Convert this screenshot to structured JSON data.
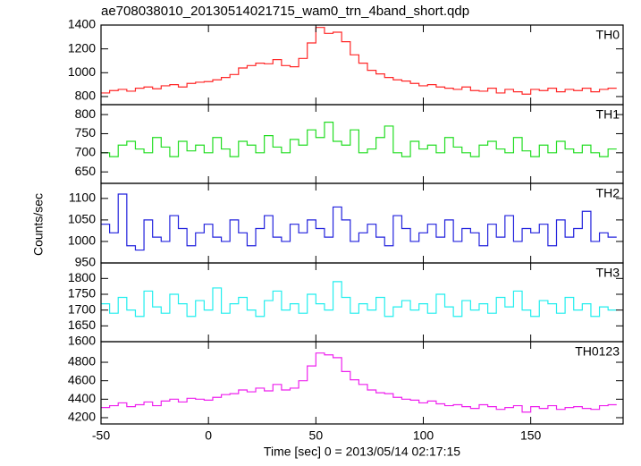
{
  "title": "ae708038010_20130514021715_wam0_trn_4band_short.qdp",
  "xlabel": "Time [sec] 0 = 2013/05/14 02:17:15",
  "ylabel": "Counts/sec",
  "chart_data": [
    {
      "type": "line",
      "x": [
        -48,
        -44,
        -40,
        -36,
        -32,
        -28,
        -24,
        -20,
        -16,
        -12,
        -8,
        -4,
        0,
        4,
        8,
        12,
        16,
        20,
        24,
        28,
        32,
        36,
        40,
        44,
        48,
        52,
        56,
        60,
        64,
        68,
        72,
        76,
        80,
        84,
        88,
        92,
        96,
        100,
        104,
        108,
        112,
        116,
        120,
        124,
        128,
        132,
        136,
        140,
        144,
        148,
        152,
        156,
        160,
        164,
        168,
        172,
        176,
        180,
        184,
        188
      ],
      "series": [
        {
          "name": "TH0",
          "color": "#ff2828",
          "values": [
            830,
            850,
            860,
            845,
            870,
            880,
            865,
            890,
            900,
            880,
            910,
            920,
            925,
            940,
            960,
            985,
            1040,
            1060,
            1080,
            1075,
            1110,
            1060,
            1050,
            1120,
            1250,
            1380,
            1330,
            1340,
            1260,
            1150,
            1080,
            1020,
            990,
            960,
            940,
            930,
            910,
            890,
            900,
            880,
            870,
            860,
            880,
            850,
            845,
            870,
            830,
            860,
            840,
            820,
            860,
            850,
            870,
            840,
            860,
            850,
            870,
            840,
            860,
            870
          ]
        }
      ],
      "xlim": [
        -50,
        193
      ],
      "ylim": [
        732,
        1400
      ],
      "yticks": [
        800,
        1000,
        1200,
        1400
      ]
    },
    {
      "type": "line",
      "x": [
        -48,
        -44,
        -40,
        -36,
        -32,
        -28,
        -24,
        -20,
        -16,
        -12,
        -8,
        -4,
        0,
        4,
        8,
        12,
        16,
        20,
        24,
        28,
        32,
        36,
        40,
        44,
        48,
        52,
        56,
        60,
        64,
        68,
        72,
        76,
        80,
        84,
        88,
        92,
        96,
        100,
        104,
        108,
        112,
        116,
        120,
        124,
        128,
        132,
        136,
        140,
        144,
        148,
        152,
        156,
        160,
        164,
        168,
        172,
        176,
        180,
        184,
        188
      ],
      "series": [
        {
          "name": "TH1",
          "color": "#22dd22",
          "values": [
            700,
            690,
            720,
            730,
            710,
            700,
            740,
            715,
            690,
            730,
            705,
            720,
            700,
            740,
            710,
            690,
            730,
            720,
            700,
            745,
            715,
            700,
            735,
            720,
            760,
            740,
            780,
            730,
            720,
            760,
            700,
            710,
            740,
            770,
            700,
            690,
            730,
            710,
            720,
            700,
            740,
            715,
            700,
            690,
            720,
            730,
            710,
            700,
            740,
            705,
            690,
            720,
            700,
            730,
            710,
            700,
            720,
            700,
            690,
            710
          ]
        }
      ],
      "xlim": [
        -50,
        193
      ],
      "ylim": [
        620,
        826
      ],
      "yticks": [
        650,
        700,
        750,
        800
      ]
    },
    {
      "type": "line",
      "x": [
        -48,
        -44,
        -40,
        -36,
        -32,
        -28,
        -24,
        -20,
        -16,
        -12,
        -8,
        -4,
        0,
        4,
        8,
        12,
        16,
        20,
        24,
        28,
        32,
        36,
        40,
        44,
        48,
        52,
        56,
        60,
        64,
        68,
        72,
        76,
        80,
        84,
        88,
        92,
        96,
        100,
        104,
        108,
        112,
        116,
        120,
        124,
        128,
        132,
        136,
        140,
        144,
        148,
        152,
        156,
        160,
        164,
        168,
        172,
        176,
        180,
        184,
        188
      ],
      "series": [
        {
          "name": "TH2",
          "color": "#2222dd",
          "values": [
            1040,
            1020,
            1110,
            990,
            980,
            1050,
            1010,
            1000,
            1060,
            1030,
            990,
            1020,
            1040,
            1010,
            1000,
            1050,
            1020,
            990,
            1030,
            1060,
            1010,
            1000,
            1040,
            1020,
            1050,
            1030,
            1010,
            1080,
            1050,
            1000,
            1020,
            1040,
            1010,
            990,
            1060,
            1030,
            1000,
            1020,
            1040,
            1010,
            1050,
            1000,
            1030,
            1020,
            990,
            1040,
            1010,
            1060,
            1000,
            1030,
            1020,
            1040,
            990,
            1050,
            1010,
            1030,
            1070,
            1000,
            1020,
            1010
          ]
        }
      ],
      "xlim": [
        -50,
        193
      ],
      "ylim": [
        950,
        1135
      ],
      "yticks": [
        950,
        1000,
        1050,
        1100
      ]
    },
    {
      "type": "line",
      "x": [
        -48,
        -44,
        -40,
        -36,
        -32,
        -28,
        -24,
        -20,
        -16,
        -12,
        -8,
        -4,
        0,
        4,
        8,
        12,
        16,
        20,
        24,
        28,
        32,
        36,
        40,
        44,
        48,
        52,
        56,
        60,
        64,
        68,
        72,
        76,
        80,
        84,
        88,
        92,
        96,
        100,
        104,
        108,
        112,
        116,
        120,
        124,
        128,
        132,
        136,
        140,
        144,
        148,
        152,
        156,
        160,
        164,
        168,
        172,
        176,
        180,
        184,
        188
      ],
      "series": [
        {
          "name": "TH3",
          "color": "#22eeee",
          "values": [
            1720,
            1690,
            1740,
            1700,
            1680,
            1760,
            1710,
            1690,
            1750,
            1720,
            1680,
            1730,
            1700,
            1770,
            1690,
            1720,
            1740,
            1700,
            1680,
            1730,
            1760,
            1700,
            1720,
            1690,
            1750,
            1720,
            1700,
            1790,
            1740,
            1690,
            1720,
            1700,
            1740,
            1680,
            1710,
            1730,
            1700,
            1720,
            1690,
            1750,
            1710,
            1680,
            1730,
            1700,
            1720,
            1690,
            1740,
            1710,
            1760,
            1700,
            1680,
            1730,
            1720,
            1690,
            1740,
            1700,
            1720,
            1680,
            1710,
            1700
          ]
        }
      ],
      "xlim": [
        -50,
        193
      ],
      "ylim": [
        1600,
        1849
      ],
      "yticks": [
        1600,
        1650,
        1700,
        1750,
        1800
      ]
    },
    {
      "type": "line",
      "x": [
        -48,
        -44,
        -40,
        -36,
        -32,
        -28,
        -24,
        -20,
        -16,
        -12,
        -8,
        -4,
        0,
        4,
        8,
        12,
        16,
        20,
        24,
        28,
        32,
        36,
        40,
        44,
        48,
        52,
        56,
        60,
        64,
        68,
        72,
        76,
        80,
        84,
        88,
        92,
        96,
        100,
        104,
        108,
        112,
        116,
        120,
        124,
        128,
        132,
        136,
        140,
        144,
        148,
        152,
        156,
        160,
        164,
        168,
        172,
        176,
        180,
        184,
        188
      ],
      "series": [
        {
          "name": "TH0123",
          "color": "#ee22ee",
          "values": [
            4310,
            4330,
            4360,
            4320,
            4340,
            4370,
            4330,
            4380,
            4400,
            4370,
            4410,
            4400,
            4390,
            4420,
            4450,
            4460,
            4500,
            4480,
            4520,
            4490,
            4560,
            4500,
            4520,
            4600,
            4760,
            4900,
            4880,
            4850,
            4700,
            4610,
            4560,
            4500,
            4470,
            4460,
            4420,
            4400,
            4390,
            4360,
            4380,
            4350,
            4330,
            4340,
            4320,
            4300,
            4340,
            4320,
            4290,
            4310,
            4330,
            4260,
            4320,
            4300,
            4330,
            4290,
            4310,
            4320,
            4300,
            4290,
            4330,
            4340
          ]
        }
      ],
      "xlim": [
        -50,
        193
      ],
      "ylim": [
        4132,
        5023
      ],
      "yticks": [
        4200,
        4400,
        4600,
        4800
      ],
      "xticks": [
        -50,
        0,
        50,
        100,
        150
      ]
    }
  ]
}
